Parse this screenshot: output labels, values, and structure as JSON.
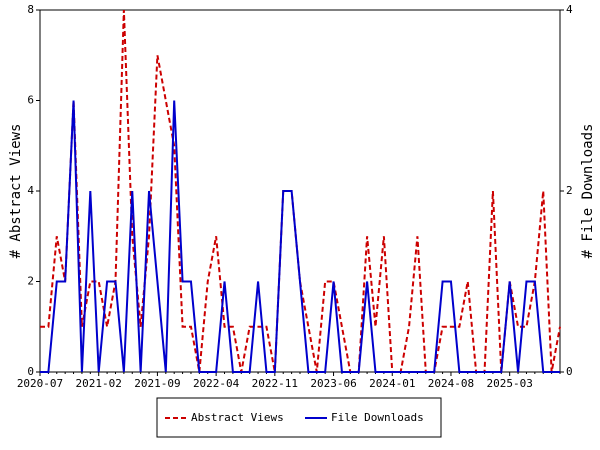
{
  "chart_data": {
    "type": "line",
    "categories": [
      "2020-07",
      null,
      null,
      null,
      null,
      null,
      null,
      "2021-02",
      null,
      null,
      null,
      null,
      null,
      null,
      "2021-09",
      null,
      null,
      null,
      null,
      null,
      null,
      "2022-04",
      null,
      null,
      null,
      null,
      null,
      null,
      "2022-11",
      null,
      null,
      null,
      null,
      null,
      null,
      "2023-06",
      null,
      null,
      null,
      null,
      null,
      null,
      "2024-01",
      null,
      null,
      null,
      null,
      null,
      null,
      "2024-08",
      null,
      null,
      null,
      null,
      null,
      null,
      "2025-03",
      null,
      null,
      null,
      null,
      null,
      null
    ],
    "series": [
      {
        "name": "Abstract Views",
        "color": "#cc0000",
        "axis": "y",
        "values": [
          1,
          1,
          3,
          2,
          6,
          1,
          2,
          2,
          1,
          2,
          8,
          3,
          1,
          3,
          7,
          6,
          5,
          1,
          1,
          0,
          2,
          3,
          1,
          1,
          0,
          1,
          1,
          1,
          0,
          4,
          4,
          2,
          1,
          0,
          2,
          2,
          1,
          0,
          0,
          3,
          1,
          3,
          0,
          0,
          1,
          3,
          0,
          0,
          1,
          1,
          1,
          2,
          0,
          0,
          4,
          0,
          2,
          1,
          1,
          2,
          4,
          0,
          1
        ]
      },
      {
        "name": "File Downloads",
        "color": "#0000cc",
        "axis": "y2",
        "values": [
          0,
          0,
          1,
          1,
          3,
          0,
          2,
          0,
          1,
          1,
          0,
          2,
          0,
          2,
          1,
          0,
          3,
          1,
          1,
          0,
          0,
          0,
          1,
          0,
          0,
          0,
          1,
          0,
          0,
          2,
          2,
          1,
          0,
          0,
          0,
          1,
          0,
          0,
          0,
          1,
          0,
          0,
          0,
          0,
          0,
          0,
          0,
          0,
          1,
          1,
          0,
          0,
          0,
          0,
          0,
          0,
          1,
          0,
          1,
          1,
          0,
          0,
          0
        ]
      }
    ],
    "ylabel": "# Abstract Views",
    "y2label": "# File Downloads",
    "ylim": [
      0,
      8
    ],
    "yticks": [
      0,
      2,
      4,
      6,
      8
    ],
    "y2lim": [
      0,
      4
    ],
    "y2ticks": [
      0,
      2,
      4
    ],
    "legend": "bottom"
  }
}
